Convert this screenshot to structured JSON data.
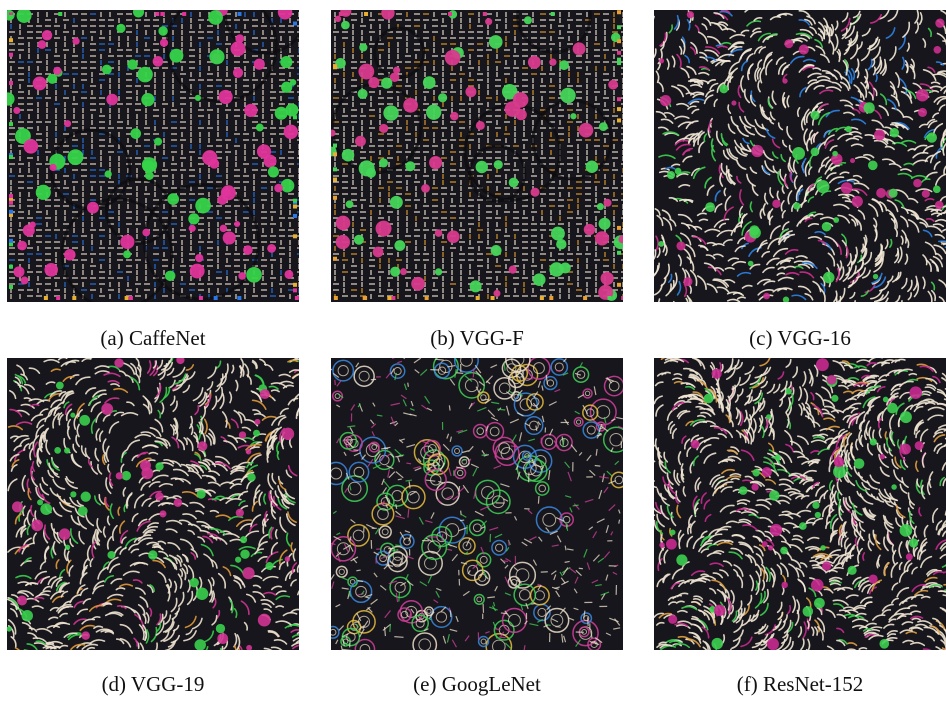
{
  "figure": {
    "panels": [
      {
        "caption": "(a)  CaffeNet",
        "pattern": "grid-blobs",
        "colors": [
          "#e0349b",
          "#36d44a",
          "#f0e2d0",
          "#2a78e8"
        ]
      },
      {
        "caption": "(b)  VGG-F",
        "pattern": "grid-blobs",
        "colors": [
          "#d83a8c",
          "#44d65a",
          "#f2e8d8",
          "#e8a030"
        ]
      },
      {
        "caption": "(c)  VGG-16",
        "pattern": "swirls",
        "colors": [
          "#cc2f8e",
          "#3fd451",
          "#f4ead8",
          "#2c83e4"
        ]
      },
      {
        "caption": "(d)  VGG-19",
        "pattern": "swirls",
        "colors": [
          "#d23494",
          "#38cf4c",
          "#efe4d2",
          "#e09a3a"
        ]
      },
      {
        "caption": "(e)  GoogLeNet",
        "pattern": "spirals",
        "colors": [
          "#d3409c",
          "#40d256",
          "#eee2cc",
          "#3a8ae0"
        ]
      },
      {
        "caption": "(f)  ResNet-152",
        "pattern": "dense",
        "colors": [
          "#c82a90",
          "#3ccf50",
          "#f0e6d4",
          "#e0a040"
        ]
      }
    ]
  }
}
